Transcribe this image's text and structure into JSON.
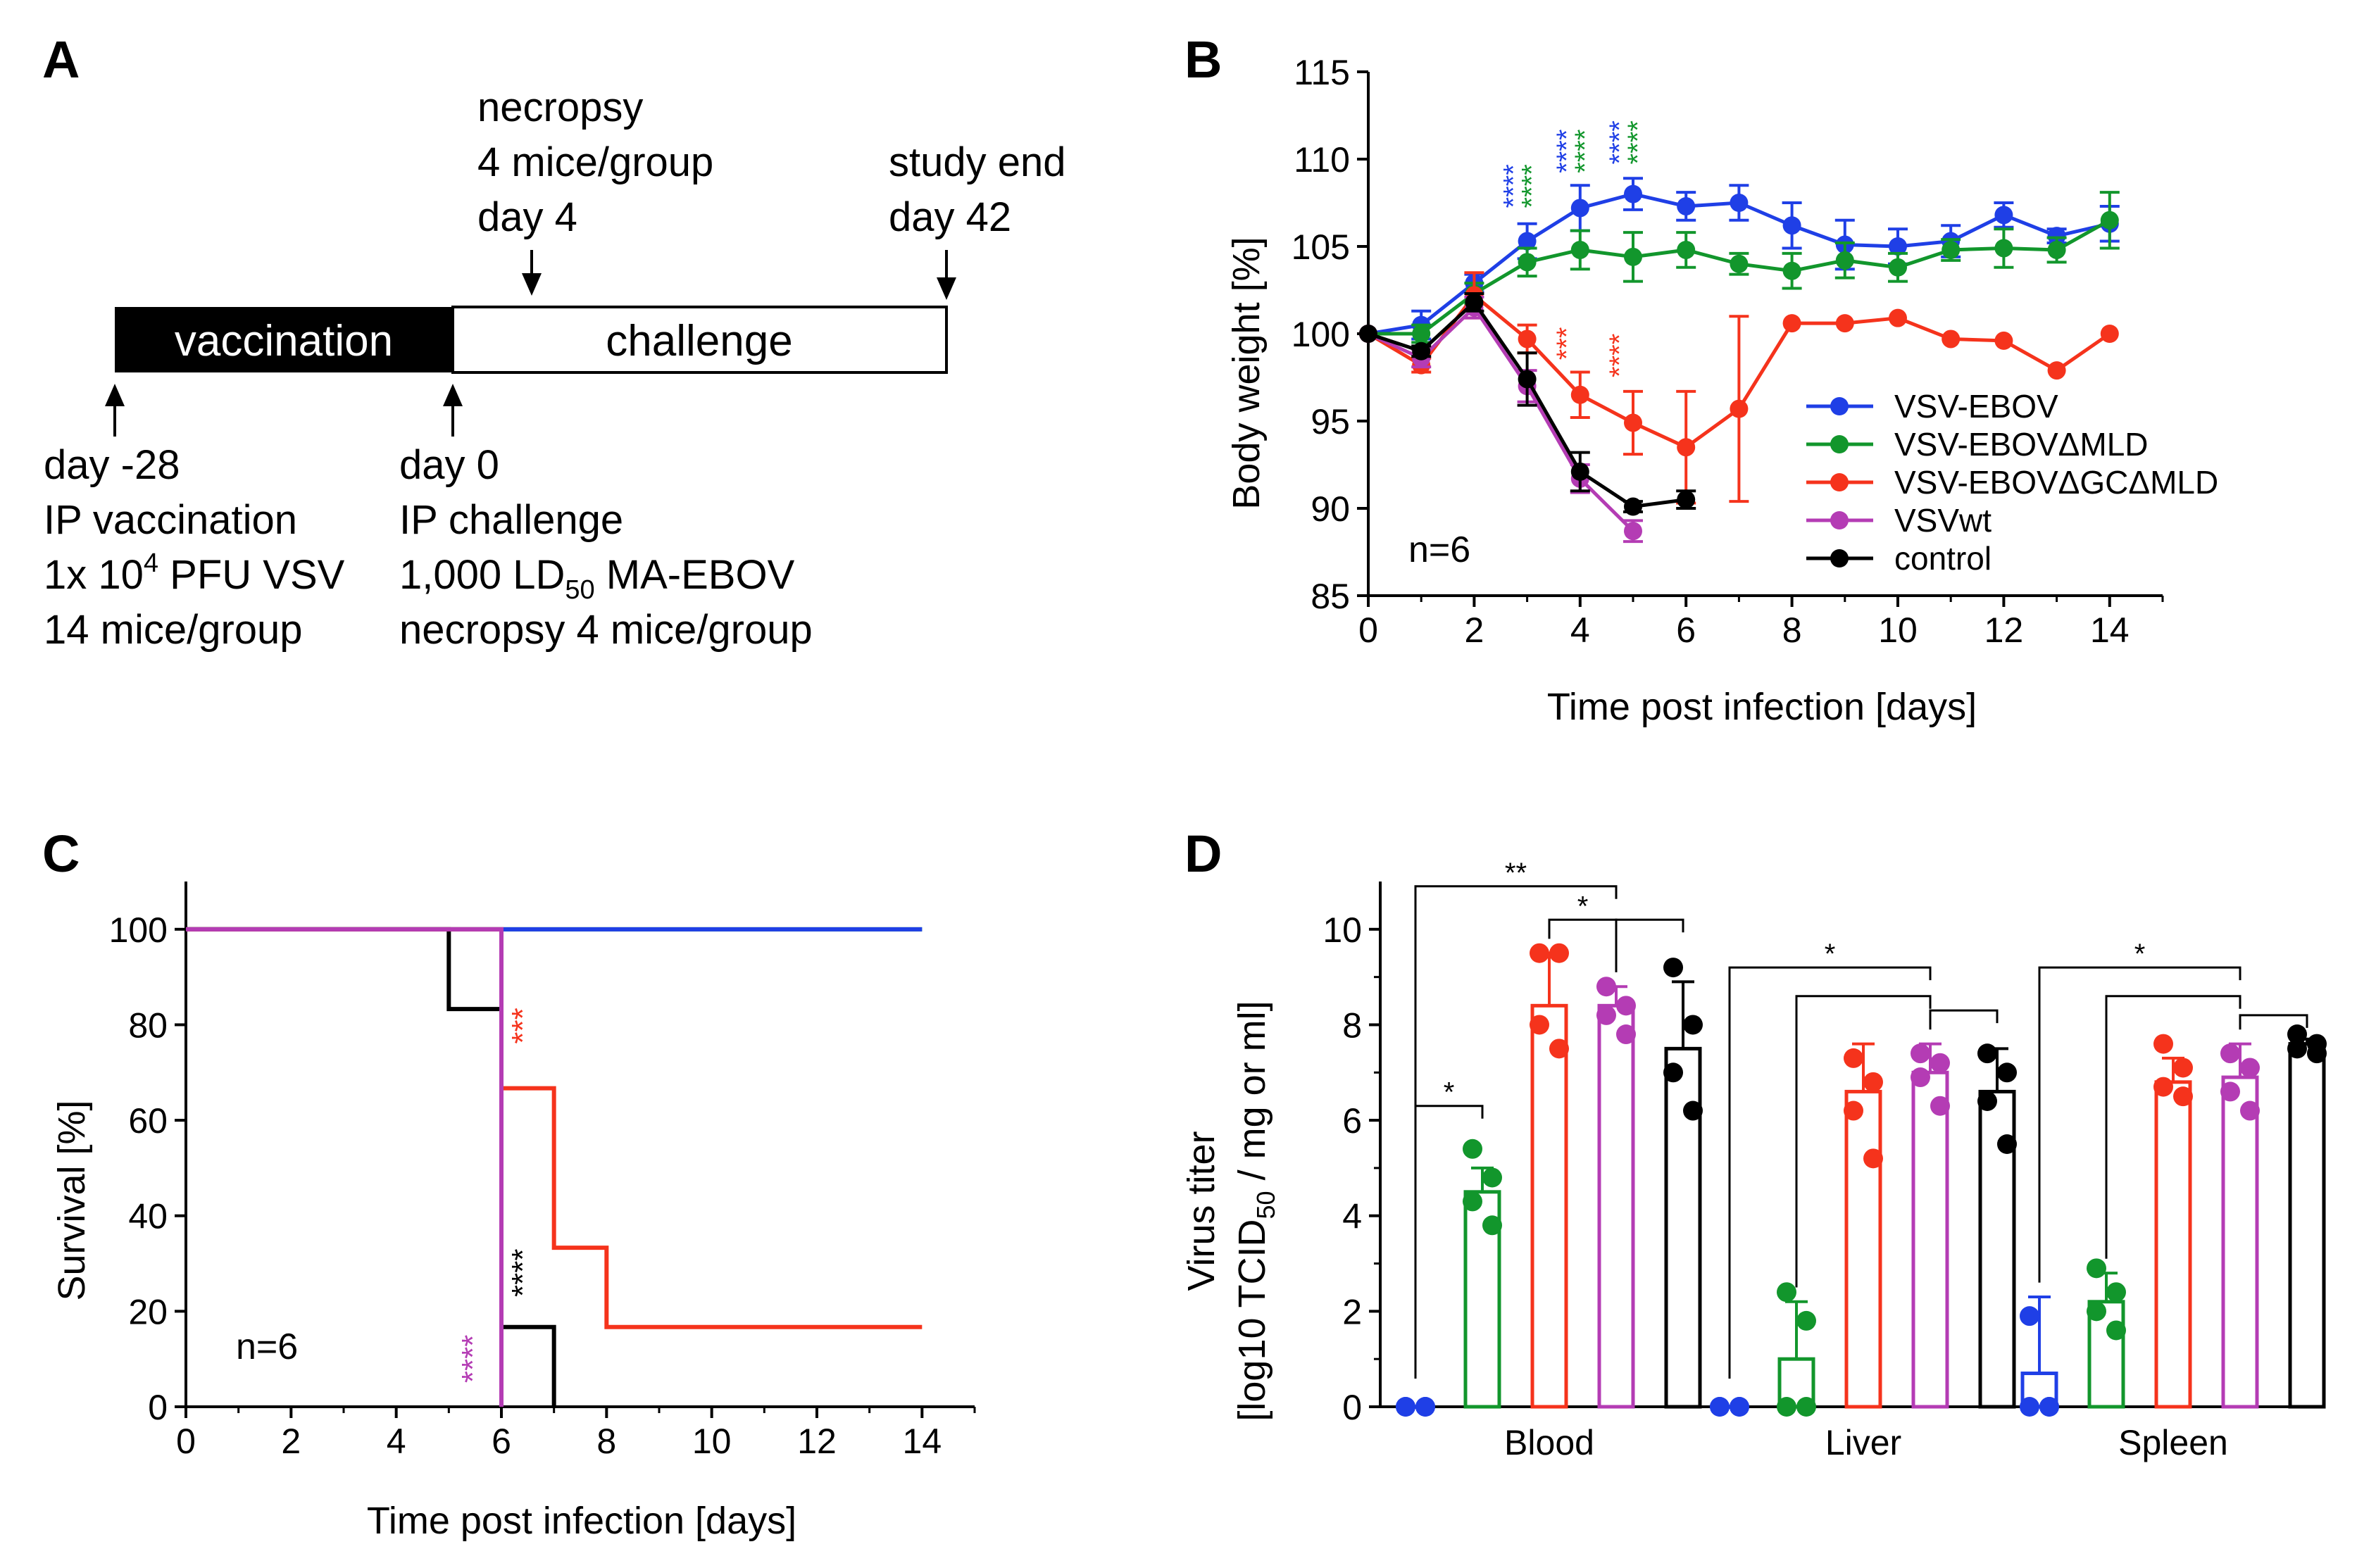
{
  "colors": {
    "blue": "#1f3fe6",
    "green": "#12962c",
    "red": "#f5331c",
    "magenta": "#b43cb4",
    "black": "#000000"
  },
  "panel_labels": {
    "a": "A",
    "b": "B",
    "c": "C",
    "d": "D"
  },
  "timeline": {
    "vaccination_label": "vaccination",
    "challenge_label": "challenge",
    "necropsy_lines": [
      "necropsy",
      "4 mice/group",
      "day 4"
    ],
    "study_end_lines": [
      "study end",
      "day 42"
    ],
    "vaccination_lines": [
      "day -28",
      "IP vaccination",
      "1x 10",
      "4",
      " PFU VSV",
      "14 mice/group"
    ],
    "challenge_lines": [
      "day 0",
      "IP challenge",
      "1,000 LD",
      "50",
      " MA-EBOV",
      "necropsy 4 mice/group"
    ]
  },
  "chart_data": [
    {
      "id": "B",
      "type": "line",
      "xlabel": "Time post infection [days]",
      "ylabel": "Body weight  [%]",
      "xlim": [
        0,
        15
      ],
      "ylim": [
        85,
        115
      ],
      "xticks": [
        0,
        2,
        4,
        6,
        8,
        10,
        12,
        14
      ],
      "yticks": [
        85,
        90,
        95,
        100,
        105,
        110,
        115
      ],
      "annotation": "n=6",
      "legend_position": "right",
      "series": [
        {
          "name": "VSV-EBOV",
          "color": "blue",
          "x": [
            0,
            1,
            2,
            3,
            4,
            5,
            6,
            7,
            8,
            9,
            10,
            11,
            12,
            13,
            14
          ],
          "y": [
            100,
            100.5,
            102.9,
            105.3,
            107.2,
            108.0,
            107.3,
            107.5,
            106.2,
            105.1,
            105.0,
            105.3,
            106.8,
            105.6,
            106.3
          ],
          "err": [
            0,
            0.8,
            0.5,
            1.0,
            1.3,
            0.9,
            0.8,
            1.0,
            1.3,
            1.4,
            1.0,
            0.9,
            0.7,
            0.4,
            1.0
          ]
        },
        {
          "name": "VSV-EBOVΔMLD",
          "color": "green",
          "x": [
            0,
            1,
            2,
            3,
            4,
            5,
            6,
            7,
            8,
            9,
            10,
            11,
            12,
            13,
            14
          ],
          "y": [
            100,
            100.0,
            102.3,
            104.1,
            104.8,
            104.4,
            104.8,
            104.0,
            103.6,
            104.2,
            103.8,
            104.8,
            104.9,
            104.8,
            106.5
          ],
          "err": [
            0,
            0.5,
            0.6,
            0.8,
            1.1,
            1.4,
            1.0,
            0.6,
            1.0,
            1.0,
            0.8,
            0.6,
            1.1,
            0.7,
            1.6
          ]
        },
        {
          "name": "VSV-EBOVΔGCΔMLD",
          "color": "red",
          "x": [
            0,
            1,
            2,
            3,
            4,
            5,
            6,
            7,
            8,
            9,
            10,
            11,
            12,
            13,
            14
          ],
          "y": [
            100,
            98.2,
            102.2,
            99.7,
            96.5,
            94.9,
            93.5,
            95.7,
            100.6,
            100.6,
            100.9,
            99.7,
            99.6,
            97.9,
            100.0
          ],
          "err": [
            0,
            0.4,
            1.3,
            0.8,
            1.3,
            1.8,
            3.2,
            5.3,
            0,
            0,
            0,
            0,
            0,
            0,
            0
          ]
        },
        {
          "name": "VSVwt",
          "color": "magenta",
          "x": [
            0,
            1,
            2,
            3,
            4,
            5
          ],
          "y": [
            100,
            98.6,
            101.5,
            97.0,
            91.7,
            88.7
          ],
          "err": [
            0,
            0.5,
            0.6,
            0.9,
            0.8,
            0.6
          ]
        },
        {
          "name": "control",
          "color": "black",
          "x": [
            0,
            1,
            2,
            3,
            4,
            5,
            6
          ],
          "y": [
            100,
            99.0,
            101.8,
            97.4,
            92.1,
            90.1,
            90.5
          ],
          "err": [
            0,
            0.3,
            0.5,
            1.5,
            1.1,
            0.3,
            0.5
          ]
        }
      ],
      "significance": [
        {
          "x": 3,
          "y": 107.2,
          "lines": [
            {
              "text": "****",
              "color": "blue"
            },
            {
              "text": "****",
              "color": "green"
            }
          ]
        },
        {
          "x": 4,
          "y": 109.2,
          "lines": [
            {
              "text": "****",
              "color": "blue"
            },
            {
              "text": "****",
              "color": "green"
            }
          ]
        },
        {
          "x": 5,
          "y": 109.7,
          "lines": [
            {
              "text": "****",
              "color": "blue"
            },
            {
              "text": "****",
              "color": "green"
            }
          ]
        },
        {
          "x": 4,
          "y": 98.5,
          "lines": [
            {
              "text": "***",
              "color": "red"
            }
          ]
        },
        {
          "x": 5,
          "y": 97.5,
          "lines": [
            {
              "text": "****",
              "color": "red"
            }
          ]
        }
      ]
    },
    {
      "id": "C",
      "type": "line",
      "subtype": "survival-step",
      "xlabel": "Time post infection [days]",
      "ylabel": "Survival [%]",
      "xlim": [
        0,
        15
      ],
      "ylim": [
        0,
        110
      ],
      "xticks": [
        0,
        2,
        4,
        6,
        8,
        10,
        12,
        14
      ],
      "yticks": [
        0,
        20,
        40,
        60,
        80,
        100
      ],
      "annotation": "n=6",
      "series": [
        {
          "name": "VSV-EBOVΔMLD",
          "color": "green",
          "x": [
            0,
            14
          ],
          "y": [
            100,
            100
          ]
        },
        {
          "name": "VSV-EBOV",
          "color": "blue",
          "x": [
            0,
            14
          ],
          "y": [
            100,
            100
          ]
        },
        {
          "name": "control",
          "color": "black",
          "x": [
            0,
            5,
            6,
            7
          ],
          "y": [
            100,
            83.3,
            16.7,
            0
          ]
        },
        {
          "name": "VSV-EBOVΔGCΔMLD",
          "color": "red",
          "x": [
            0,
            6,
            7,
            8,
            14
          ],
          "y": [
            100,
            66.7,
            33.3,
            16.7,
            16.7
          ]
        },
        {
          "name": "VSVwt",
          "color": "magenta",
          "x": [
            0,
            6
          ],
          "y": [
            100,
            0
          ]
        }
      ],
      "significance": [
        {
          "x": 6.6,
          "y": 76,
          "text": "***",
          "color": "red"
        },
        {
          "x": 6.6,
          "y": 23,
          "text": "****",
          "color": "black"
        },
        {
          "x": 5.65,
          "y": 5,
          "text": "****",
          "color": "magenta"
        }
      ]
    },
    {
      "id": "D",
      "type": "bar",
      "ylabel_lines": [
        "Virus titer",
        "[log10 TCID",
        "50",
        " / mg or ml]"
      ],
      "ylim": [
        0,
        11
      ],
      "yticks": [
        0,
        2,
        4,
        6,
        8,
        10
      ],
      "categories": [
        "Blood",
        "Liver",
        "Spleen"
      ],
      "series": [
        {
          "name": "VSV-EBOV",
          "color": "blue",
          "values": [
            0,
            0,
            0.7
          ],
          "err": [
            0,
            0,
            1.6
          ],
          "points": [
            [
              0,
              0,
              0,
              0
            ],
            [
              0,
              0,
              0,
              0
            ],
            [
              1.9,
              0,
              0,
              0
            ]
          ]
        },
        {
          "name": "VSV-EBOVΔMLD",
          "color": "green",
          "values": [
            4.5,
            1.0,
            2.2
          ],
          "err": [
            0.5,
            1.2,
            0.6
          ],
          "points": [
            [
              5.4,
              4.8,
              4.3,
              3.8
            ],
            [
              2.4,
              1.8,
              0,
              0
            ],
            [
              2.9,
              2.4,
              2.0,
              1.6
            ]
          ]
        },
        {
          "name": "VSV-EBOVΔGCΔMLD",
          "color": "red",
          "values": [
            8.4,
            6.6,
            6.8
          ],
          "err": [
            1.1,
            1.0,
            0.5
          ],
          "points": [
            [
              9.5,
              9.5,
              8.0,
              7.5
            ],
            [
              7.3,
              6.8,
              6.2,
              5.2
            ],
            [
              7.6,
              7.1,
              6.7,
              6.5
            ]
          ]
        },
        {
          "name": "VSVwt",
          "color": "magenta",
          "values": [
            8.4,
            7.0,
            6.9
          ],
          "err": [
            0.4,
            0.6,
            0.7
          ],
          "points": [
            [
              8.8,
              8.4,
              8.2,
              7.8
            ],
            [
              7.4,
              7.2,
              6.9,
              6.3
            ],
            [
              7.4,
              7.1,
              6.6,
              6.2
            ]
          ]
        },
        {
          "name": "control",
          "color": "black",
          "values": [
            7.5,
            6.6,
            7.6
          ],
          "err": [
            1.4,
            0.9,
            0.1
          ],
          "points": [
            [
              9.2,
              8.0,
              7.0,
              6.2
            ],
            [
              7.4,
              7.0,
              6.4,
              5.5
            ],
            [
              7.8,
              7.6,
              7.5,
              7.4
            ]
          ]
        }
      ],
      "brackets": [
        {
          "category": 0,
          "from": 0,
          "to": 1,
          "y": 6.3,
          "text": "*"
        },
        {
          "category": 0,
          "from": 0,
          "to": 3,
          "y": 10.9,
          "text": "**"
        },
        {
          "category": 0,
          "from": 2,
          "to": 3,
          "y": 10.2,
          "text": "*"
        },
        {
          "category": 0,
          "from": 3,
          "to": 4,
          "y": 10.2,
          "text": ""
        },
        {
          "category": 1,
          "from": 0,
          "to": 3,
          "y": 9.2,
          "text": "*"
        },
        {
          "category": 1,
          "from": 1,
          "to": 3,
          "y": 8.6,
          "text": ""
        },
        {
          "category": 1,
          "from": 3,
          "to": 4,
          "y": 8.3,
          "text": ""
        },
        {
          "category": 2,
          "from": 0,
          "to": 3,
          "y": 9.2,
          "text": "*"
        },
        {
          "category": 2,
          "from": 1,
          "to": 3,
          "y": 8.6,
          "text": ""
        },
        {
          "category": 2,
          "from": 3,
          "to": 4,
          "y": 8.2,
          "text": ""
        }
      ]
    }
  ]
}
